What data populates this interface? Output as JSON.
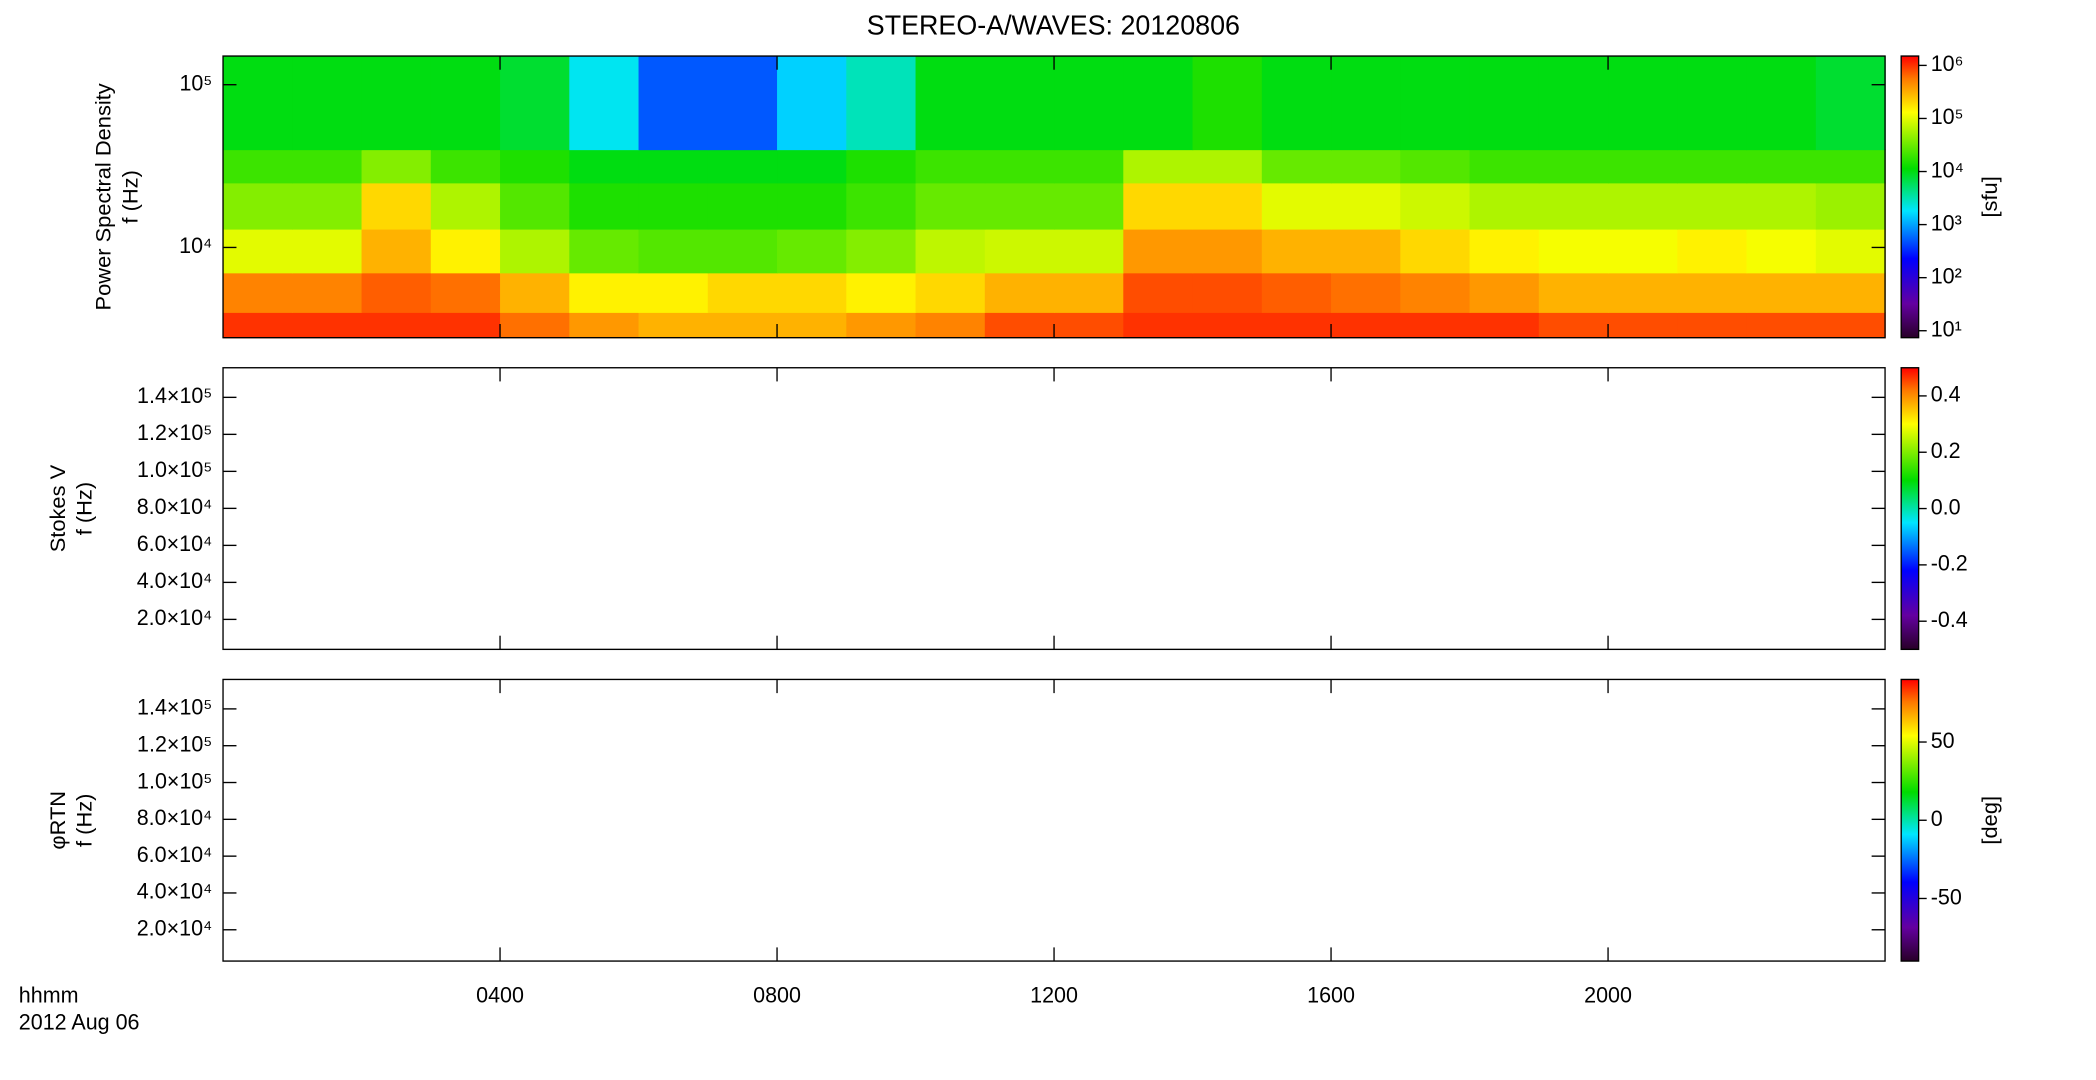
{
  "chart_data": [
    {
      "type": "heatmap",
      "title": "STEREO-A/WAVES: 20120806",
      "ylabel": [
        "Power Spectral Density",
        "f (Hz)"
      ],
      "ylog": true,
      "ylim": [
        2790,
        150000
      ],
      "yticks": [
        {
          "value": 10000,
          "label": "10⁴"
        },
        {
          "value": 100000,
          "label": "10⁵"
        }
      ],
      "xlim": [
        0,
        24
      ],
      "xticks": [
        {
          "value": 4,
          "label": "0400"
        },
        {
          "value": 8,
          "label": "0800"
        },
        {
          "value": 12,
          "label": "1200"
        },
        {
          "value": 16,
          "label": "1600"
        },
        {
          "value": 20,
          "label": "2000"
        }
      ],
      "xbins": [
        0,
        1,
        2,
        3,
        4,
        5,
        6,
        7,
        8,
        9,
        10,
        11,
        12,
        13,
        14,
        15,
        16,
        17,
        18,
        19,
        20,
        21,
        22,
        23,
        24
      ],
      "ybins": [
        2790,
        4000,
        7000,
        13000,
        25000,
        40000,
        150000
      ],
      "z": [
        [
          1000000,
          1000000,
          1000000,
          1000000,
          600000,
          400000,
          300000,
          300000,
          300000,
          400000,
          500000,
          800000,
          800000,
          1000000,
          1000000,
          1000000,
          1000000,
          1000000,
          1000000,
          800000,
          800000,
          800000,
          800000,
          800000
        ],
        [
          500000,
          500000,
          700000,
          600000,
          300000,
          150000,
          150000,
          200000,
          200000,
          150000,
          200000,
          300000,
          300000,
          800000,
          800000,
          700000,
          600000,
          500000,
          400000,
          300000,
          300000,
          300000,
          300000,
          300000
        ],
        [
          100000,
          100000,
          300000,
          150000,
          60000,
          30000,
          25000,
          25000,
          30000,
          40000,
          70000,
          80000,
          80000,
          400000,
          400000,
          300000,
          300000,
          200000,
          150000,
          120000,
          120000,
          150000,
          120000,
          100000
        ],
        [
          40000,
          40000,
          200000,
          60000,
          25000,
          15000,
          15000,
          15000,
          15000,
          20000,
          30000,
          30000,
          30000,
          200000,
          200000,
          100000,
          100000,
          80000,
          60000,
          60000,
          60000,
          60000,
          60000,
          50000
        ],
        [
          20000,
          20000,
          40000,
          20000,
          15000,
          10000,
          10000,
          10000,
          10000,
          15000,
          20000,
          20000,
          20000,
          60000,
          60000,
          30000,
          30000,
          25000,
          20000,
          20000,
          20000,
          20000,
          20000,
          20000
        ],
        [
          10000,
          10000,
          10000,
          10000,
          8000,
          2000,
          500,
          500,
          1500,
          3000,
          10000,
          10000,
          10000,
          10000,
          15000,
          10000,
          10000,
          10000,
          10000,
          10000,
          10000,
          10000,
          10000,
          8000
        ]
      ],
      "clog": true,
      "clim": [
        7.4,
        1500000
      ],
      "cticks": [
        {
          "value": 10,
          "label": "10¹"
        },
        {
          "value": 100,
          "label": "10²"
        },
        {
          "value": 1000,
          "label": "10³"
        },
        {
          "value": 10000,
          "label": "10⁴"
        },
        {
          "value": 100000,
          "label": "10⁵"
        },
        {
          "value": 1000000,
          "label": "10⁶"
        }
      ],
      "clabel": "[sfu]"
    },
    {
      "type": "heatmap",
      "ylabel": [
        "Stokes V",
        "f (Hz)"
      ],
      "ylog": false,
      "ylim": [
        3800,
        156000
      ],
      "yticks": [
        {
          "value": 20000,
          "label": "2.0×10⁴"
        },
        {
          "value": 40000,
          "label": "4.0×10⁴"
        },
        {
          "value": 60000,
          "label": "6.0×10⁴"
        },
        {
          "value": 80000,
          "label": "8.0×10⁴"
        },
        {
          "value": 100000,
          "label": "1.0×10⁵"
        },
        {
          "value": 120000,
          "label": "1.2×10⁵"
        },
        {
          "value": 140000,
          "label": "1.4×10⁵"
        }
      ],
      "xlim": [
        0,
        24
      ],
      "xticks": [
        4,
        8,
        12,
        16,
        20
      ],
      "clog": false,
      "clim": [
        -0.5,
        0.5
      ],
      "cticks": [
        -0.4,
        -0.2,
        {
          "value": 0,
          "label": "0.0"
        },
        0.2,
        0.4
      ]
    },
    {
      "type": "heatmap",
      "ylabel": [
        "φRTN",
        "f (Hz)"
      ],
      "ylog": false,
      "ylim": [
        3000,
        156000
      ],
      "yticks": [
        {
          "value": 20000,
          "label": "2.0×10⁴"
        },
        {
          "value": 40000,
          "label": "4.0×10⁴"
        },
        {
          "value": 60000,
          "label": "6.0×10⁴"
        },
        {
          "value": 80000,
          "label": "8.0×10⁴"
        },
        {
          "value": 100000,
          "label": "1.0×10⁵"
        },
        {
          "value": 120000,
          "label": "1.2×10⁵"
        },
        {
          "value": 140000,
          "label": "1.4×10⁵"
        }
      ],
      "xlim": [
        0,
        24
      ],
      "xticks": [
        {
          "value": 4,
          "label": "0400"
        },
        {
          "value": 8,
          "label": "0800"
        },
        {
          "value": 12,
          "label": "1200"
        },
        {
          "value": 16,
          "label": "1600"
        },
        {
          "value": 20,
          "label": "2000"
        }
      ],
      "xlabel": "hhmm",
      "date": "2012 Aug 06",
      "clog": false,
      "clim": [
        -90,
        90
      ],
      "cticks": [
        -50,
        0,
        50
      ],
      "clabel": "[deg]"
    }
  ]
}
